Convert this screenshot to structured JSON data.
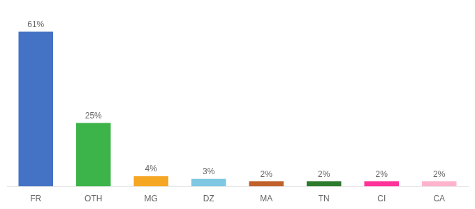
{
  "chart_data": {
    "type": "bar",
    "categories": [
      "FR",
      "OTH",
      "MG",
      "DZ",
      "MA",
      "TN",
      "CI",
      "CA"
    ],
    "values": [
      61,
      25,
      4,
      3,
      2,
      2,
      2,
      2
    ],
    "value_labels": [
      "61%",
      "25%",
      "4%",
      "3%",
      "2%",
      "2%",
      "2%",
      "2%"
    ],
    "colors": [
      "#4472c4",
      "#3cb449",
      "#f5a623",
      "#7ec8e3",
      "#c0622b",
      "#2d7a2d",
      "#ff3399",
      "#ffb3cc"
    ],
    "ylim": [
      0,
      68
    ],
    "grid": false,
    "data_labels": true,
    "tick_labels": "x"
  }
}
